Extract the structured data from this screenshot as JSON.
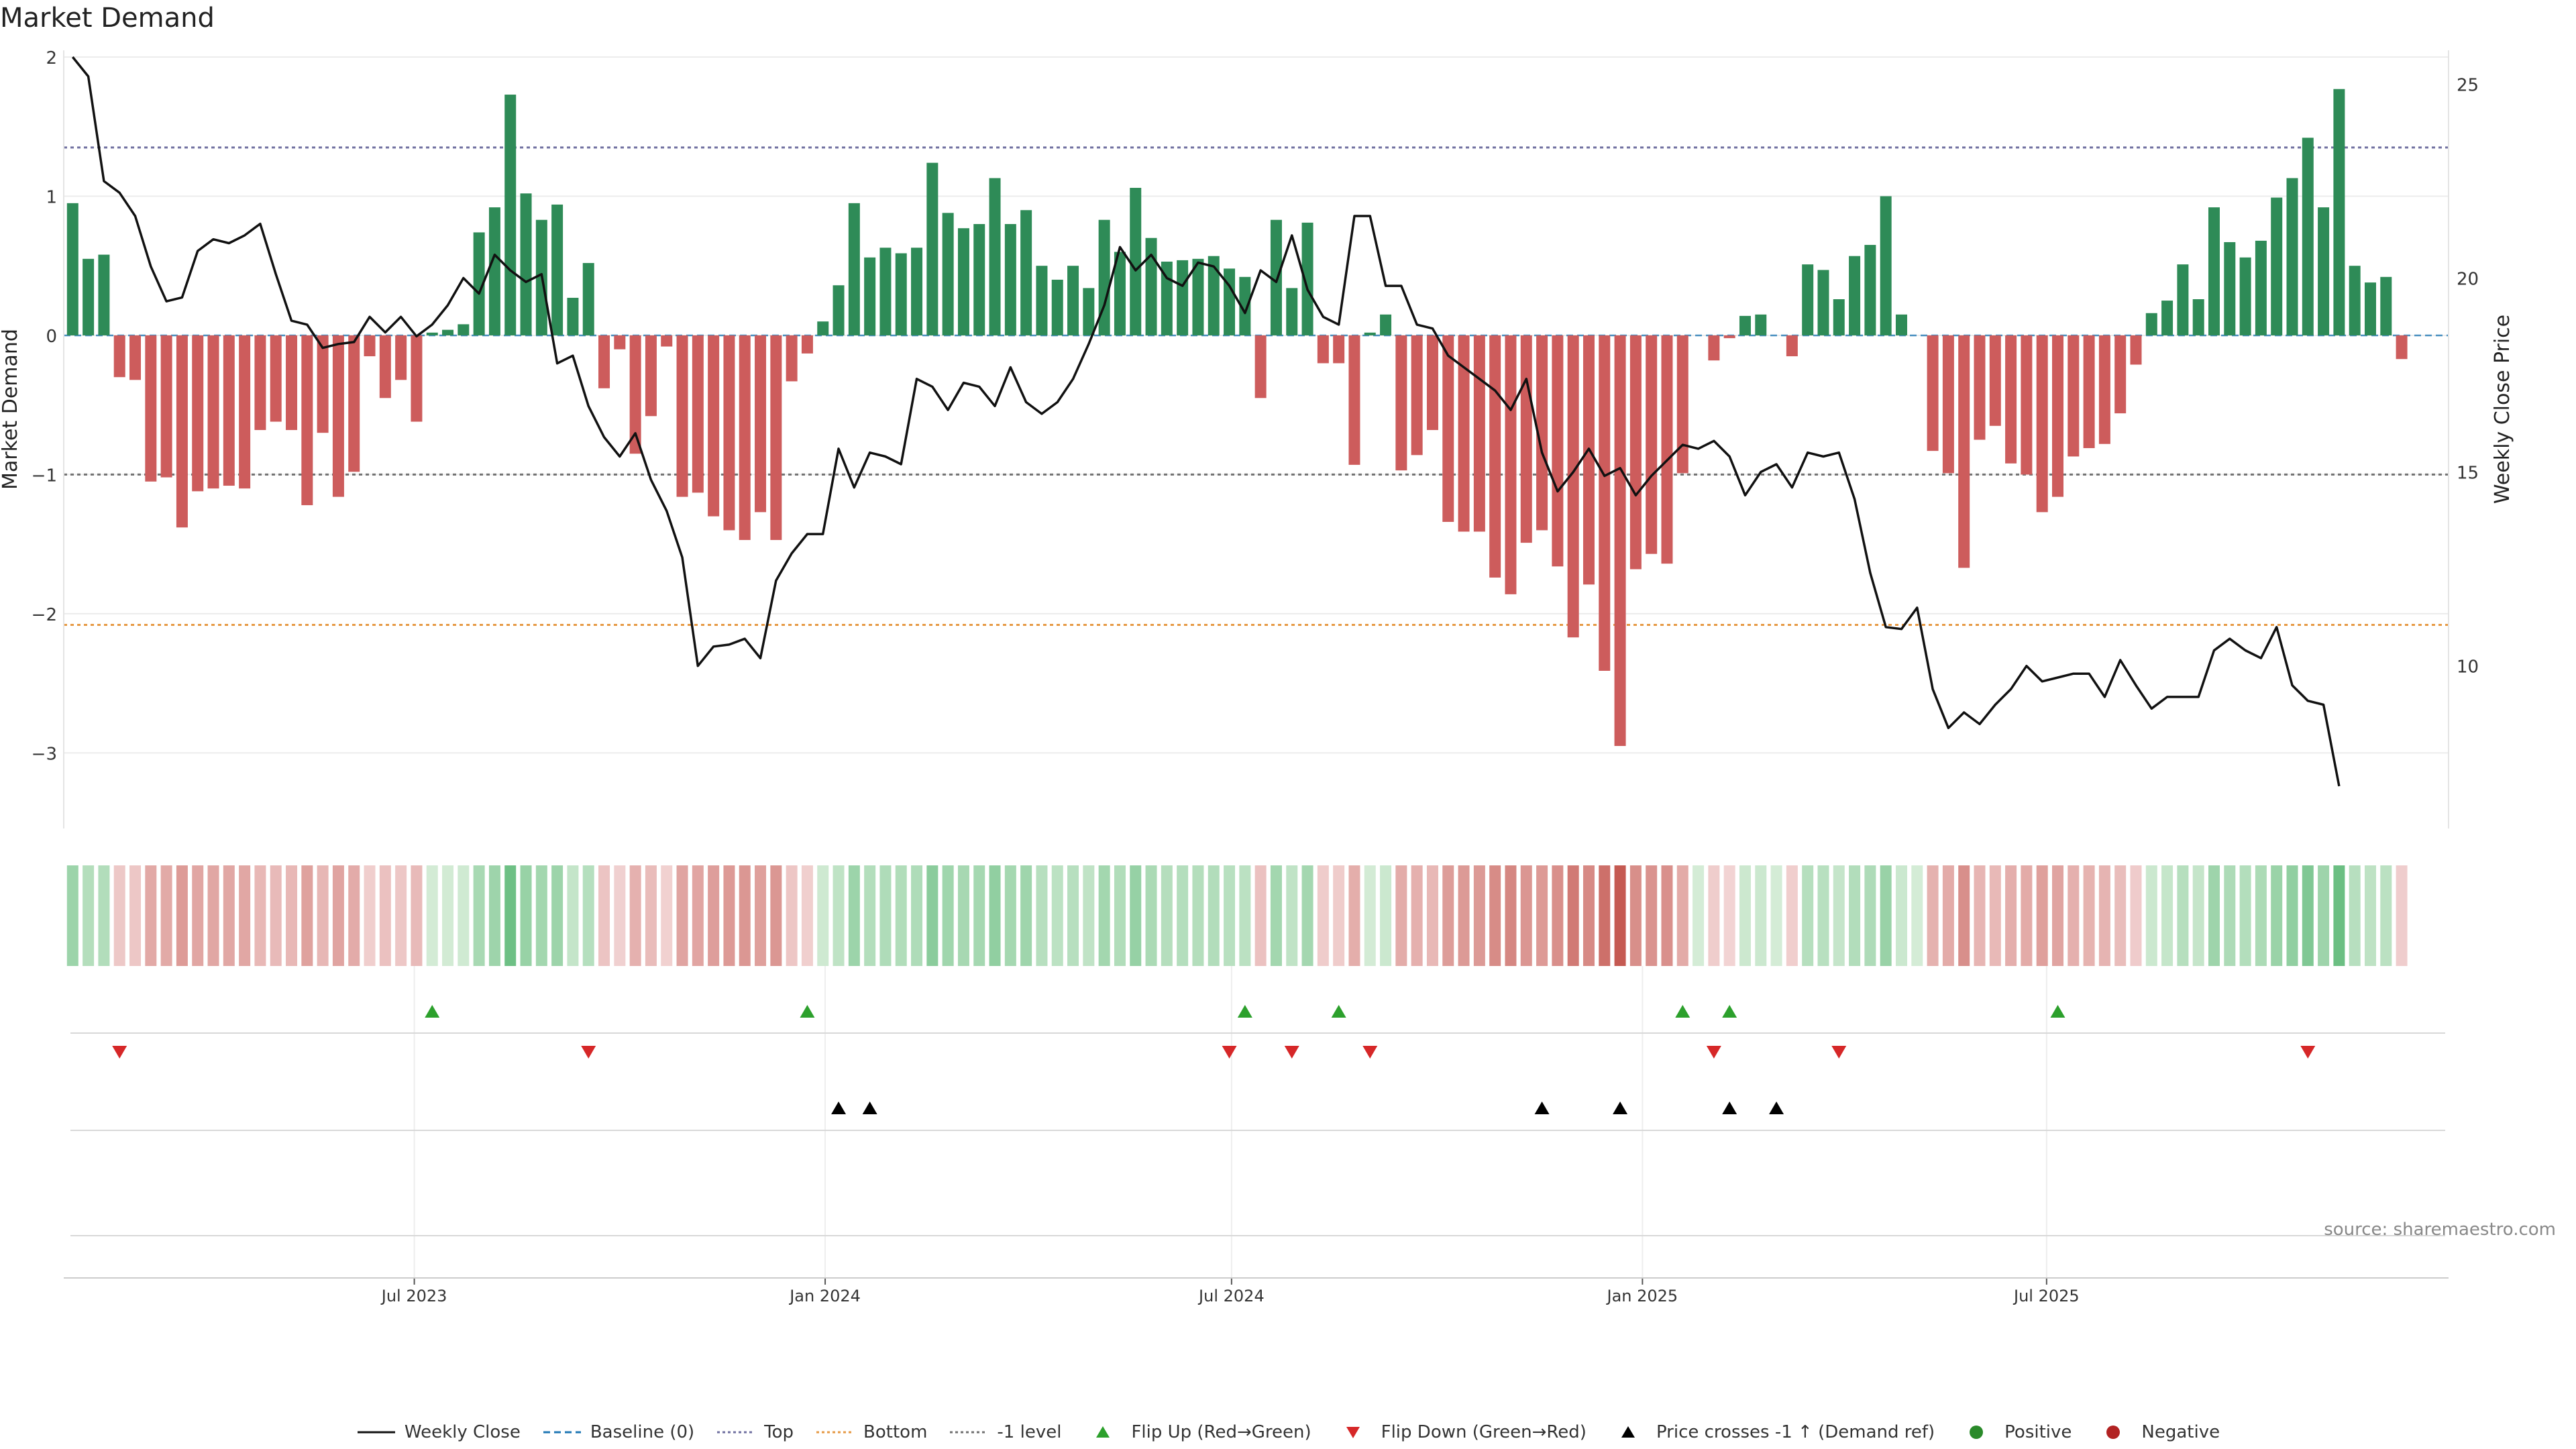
{
  "chart_data": {
    "type": "bar",
    "title": "Market Demand",
    "ylabel": "Market Demand",
    "y2label": "Weekly Close Price",
    "ylim": [
      -3.35,
      2
    ],
    "y2lim": [
      6.5,
      25.7
    ],
    "xlim": [
      "2023-01-25",
      "2025-12-28"
    ],
    "source": "source: sharemaestro.com",
    "yticks": [
      2,
      1,
      0,
      -1,
      -2,
      -3
    ],
    "ytick_labels": [
      "2",
      "1",
      "0",
      "−1",
      "−2",
      "−3"
    ],
    "y2ticks": [
      25,
      20,
      15,
      10
    ],
    "xticks": [
      {
        "date": "2023-07-01",
        "label": "Jul 2023"
      },
      {
        "date": "2024-01-01",
        "label": "Jan 2024"
      },
      {
        "date": "2024-07-01",
        "label": "Jul 2024"
      },
      {
        "date": "2025-01-01",
        "label": "Jan 2025"
      },
      {
        "date": "2025-07-01",
        "label": "Jul 2025"
      }
    ],
    "reference_lines": [
      {
        "name": "Baseline (0)",
        "value": 0,
        "color": "#1f77b4"
      },
      {
        "name": "Top",
        "value": 1.35,
        "color": "#7070a0"
      },
      {
        "name": "Bottom",
        "value": -2.08,
        "color": "#e69a45"
      },
      {
        "name": "-1 level",
        "value": -1.0,
        "color": "#707070"
      }
    ],
    "start_date": "2023-01-29",
    "series": [
      {
        "name": "Market Demand",
        "values": [
          0.95,
          0.55,
          0.58,
          -0.3,
          -0.32,
          -1.05,
          -1.02,
          -1.38,
          -1.12,
          -1.1,
          -1.08,
          -1.1,
          -0.68,
          -0.62,
          -0.68,
          -1.22,
          -0.7,
          -1.16,
          -0.98,
          -0.15,
          -0.45,
          -0.32,
          -0.62,
          0.02,
          0.04,
          0.08,
          0.74,
          0.92,
          1.73,
          1.02,
          0.83,
          0.94,
          0.27,
          0.52,
          -0.38,
          -0.1,
          -0.85,
          -0.58,
          -0.08,
          -1.16,
          -1.13,
          -1.3,
          -1.4,
          -1.47,
          -1.27,
          -1.47,
          -0.33,
          -0.13,
          0.1,
          0.36,
          0.95,
          0.56,
          0.63,
          0.59,
          0.63,
          1.24,
          0.88,
          0.77,
          0.8,
          1.13,
          0.8,
          0.9,
          0.5,
          0.4,
          0.5,
          0.34,
          0.83,
          0.6,
          1.06,
          0.7,
          0.53,
          0.54,
          0.55,
          0.57,
          0.48,
          0.42,
          -0.45,
          0.83,
          0.34,
          0.81,
          -0.2,
          -0.2,
          -0.93,
          0.02,
          0.15,
          -0.97,
          -0.86,
          -0.68,
          -1.34,
          -1.41,
          -1.41,
          -1.74,
          -1.86,
          -1.49,
          -1.4,
          -1.66,
          -2.17,
          -1.79,
          -2.41,
          -2.95,
          -1.68,
          -1.57,
          -1.64,
          -0.99,
          0,
          -0.18,
          -0.02,
          0.14,
          0.15,
          0,
          -0.15,
          0.51,
          0.47,
          0.26,
          0.57,
          0.65,
          1.0,
          0.15,
          0,
          -0.83,
          -0.99,
          -1.67,
          -0.75,
          -0.65,
          -0.92,
          -1.0,
          -1.27,
          -1.16,
          -0.87,
          -0.81,
          -0.78,
          -0.56,
          -0.21,
          0.16,
          0.25,
          0.51,
          0.26,
          0.92,
          0.67,
          0.56,
          0.68,
          0.99,
          1.13,
          1.42,
          0.92,
          1.77,
          0.5,
          0.38,
          0.42,
          -0.17
        ]
      },
      {
        "name": "Weekly Close",
        "values": [
          25.7,
          25.2,
          22.5,
          22.2,
          21.6,
          20.3,
          19.4,
          19.5,
          20.7,
          21.0,
          20.9,
          21.1,
          21.4,
          20.1,
          18.9,
          18.8,
          18.2,
          18.3,
          18.35,
          19.0,
          18.6,
          19.0,
          18.5,
          18.8,
          19.3,
          20.0,
          19.6,
          20.6,
          20.2,
          19.9,
          20.1,
          17.8,
          18.0,
          16.7,
          15.9,
          15.4,
          16.0,
          14.8,
          14.0,
          12.8,
          10.0,
          10.5,
          10.55,
          10.7,
          10.2,
          12.2,
          12.9,
          13.4,
          13.4,
          15.6,
          14.6,
          15.5,
          15.4,
          15.2,
          17.4,
          17.2,
          16.6,
          17.3,
          17.2,
          16.7,
          17.7,
          16.8,
          16.5,
          16.8,
          17.4,
          18.3,
          19.3,
          20.8,
          20.2,
          20.6,
          20.0,
          19.8,
          20.4,
          20.3,
          19.8,
          19.1,
          20.2,
          19.9,
          21.1,
          19.7,
          19.0,
          18.8,
          21.6,
          21.6,
          19.8,
          19.8,
          18.8,
          18.7,
          18.0,
          17.7,
          17.4,
          17.1,
          16.6,
          17.4,
          15.5,
          14.5,
          15.0,
          15.6,
          14.9,
          15.1,
          14.4,
          14.9,
          15.3,
          15.7,
          15.6,
          15.8,
          15.4,
          14.4,
          15.0,
          15.2,
          14.6,
          15.5,
          15.4,
          15.5,
          14.3,
          12.4,
          11.0,
          10.95,
          11.5,
          9.4,
          8.4,
          8.8,
          8.5,
          9.0,
          9.4,
          10.0,
          9.6,
          9.7,
          9.8,
          9.8,
          9.2,
          10.15,
          9.5,
          8.9,
          9.2,
          9.2,
          9.2,
          10.4,
          10.7,
          10.4,
          10.2,
          11.0,
          9.5,
          9.1,
          9.0,
          6.9
        ]
      }
    ],
    "flip_up_weeks": [
      23,
      47,
      75,
      81,
      103,
      106,
      127
    ],
    "flip_down_weeks": [
      3,
      33,
      74,
      78,
      83,
      105,
      113,
      143
    ],
    "price_cross_weeks": [
      49,
      51,
      94,
      99,
      106,
      109
    ],
    "legend": [
      {
        "label": "Weekly Close",
        "type": "line-solid",
        "color": "#111111"
      },
      {
        "label": "Baseline (0)",
        "type": "line-dashed",
        "color": "#1f77b4"
      },
      {
        "label": "Top",
        "type": "line-dotted",
        "color": "#7070a0"
      },
      {
        "label": "Bottom",
        "type": "line-dotted",
        "color": "#e69a45"
      },
      {
        "label": "-1 level",
        "type": "line-dotted",
        "color": "#707070"
      },
      {
        "label": "Flip Up (Red→Green)",
        "type": "tri-up",
        "color": "#2ca02c"
      },
      {
        "label": "Flip Down (Green→Red)",
        "type": "tri-down",
        "color": "#d62728"
      },
      {
        "label": "Price crosses -1 ↑ (Demand ref)",
        "type": "tri-up",
        "color": "#000000"
      },
      {
        "label": "Positive",
        "type": "dot",
        "color": "#2a8a2a"
      },
      {
        "label": "Negative",
        "type": "dot",
        "color": "#b22222"
      }
    ],
    "colors": {
      "positive": "#2e8b57",
      "negative": "#cd5c5c",
      "flip_up": "#2ca02c",
      "flip_down": "#d62728",
      "price_cross": "#000000"
    }
  }
}
